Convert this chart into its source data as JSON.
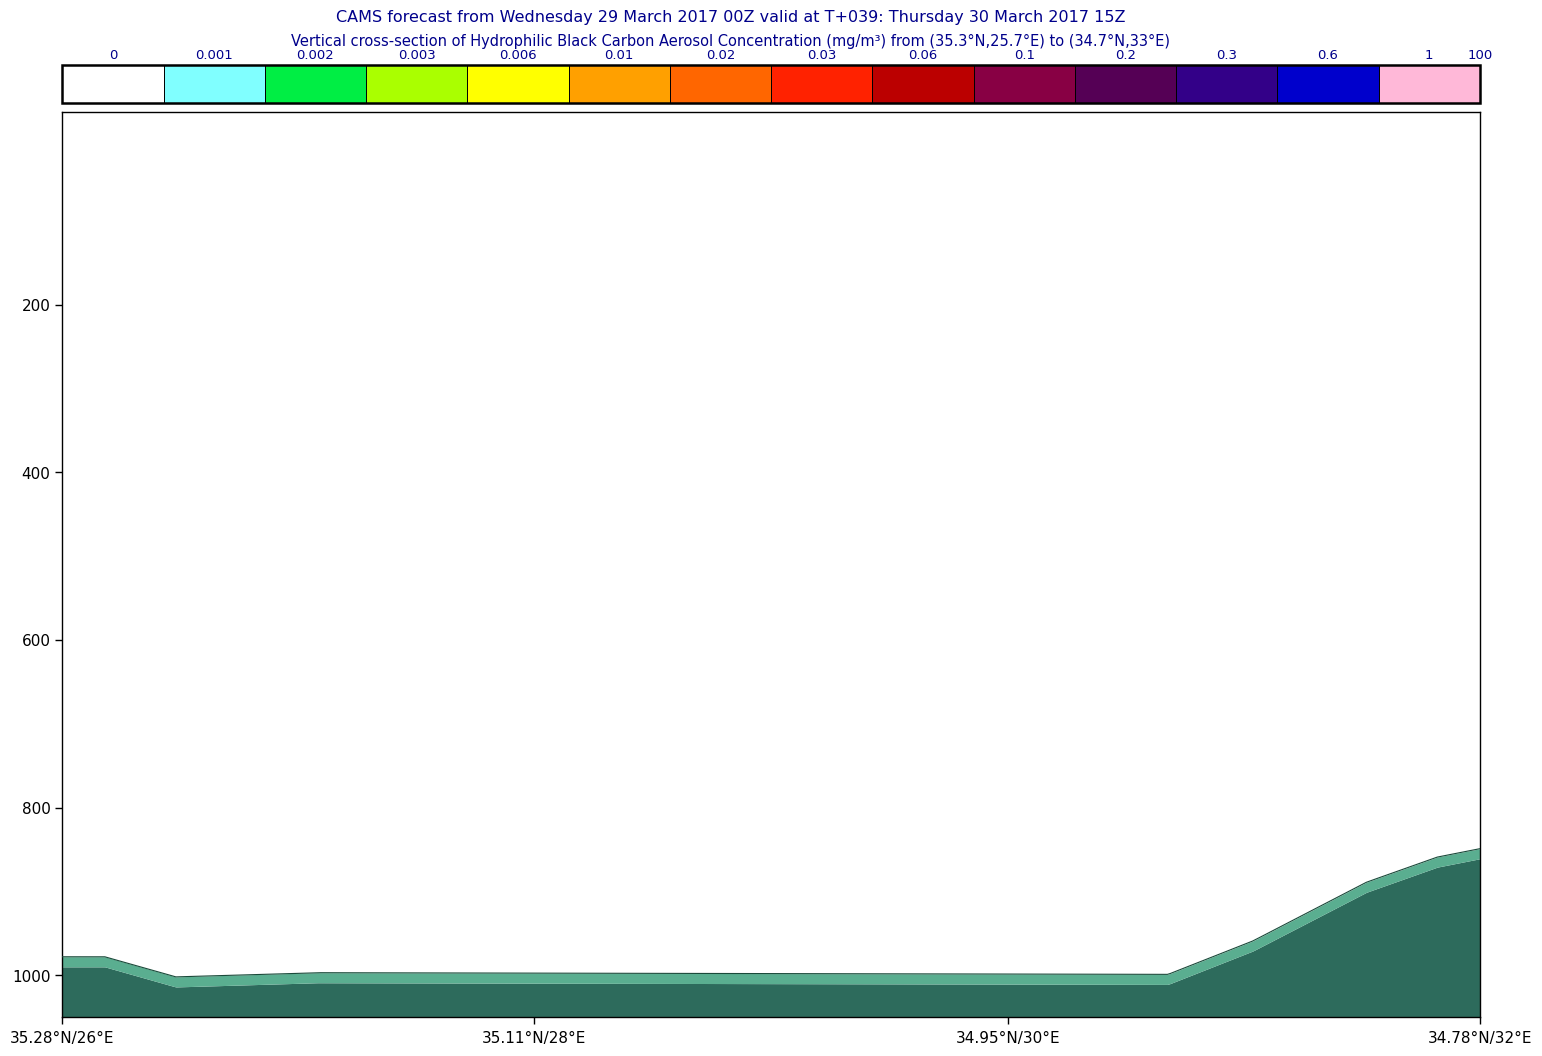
{
  "title_line1": "CAMS forecast from Wednesday 29 March 2017 00Z valid at T+039: Thursday 30 March 2017 15Z",
  "title_line2": "Vertical cross-section of Hydrophilic Black Carbon Aerosol Concentration (mg/m³) from (35.3°N,25.7°E) to (34.7°N,33°E)",
  "title_color": "#00008B",
  "colorbar_colors": [
    "#FFFFFF",
    "#80FFFF",
    "#00EE44",
    "#AAFF00",
    "#FFFF00",
    "#FFA000",
    "#FF6600",
    "#FF2200",
    "#BB0000",
    "#880044",
    "#550055",
    "#330088",
    "#0000CC",
    "#FFB8D8"
  ],
  "colorbar_labels": [
    "0",
    "0.001",
    "0.002",
    "0.003",
    "0.006",
    "0.01",
    "0.02",
    "0.03",
    "0.06",
    "0.1",
    "0.2",
    "0.3",
    "0.6",
    "1",
    "100"
  ],
  "yticks": [
    200,
    400,
    600,
    800,
    1000
  ],
  "xtick_labels": [
    "35.28°N/26°E",
    "35.11°N/28°E",
    "34.95°N/30°E",
    "34.78°N/32°E"
  ],
  "xtick_positions": [
    0.0,
    0.333,
    0.667,
    1.0
  ],
  "bg_color": "#FFFFFF",
  "surface_dark": "#2D6B5C",
  "surface_mid": "#3D8C74",
  "surface_light": "#5AAE90",
  "surface_line": "#1A4A3A"
}
